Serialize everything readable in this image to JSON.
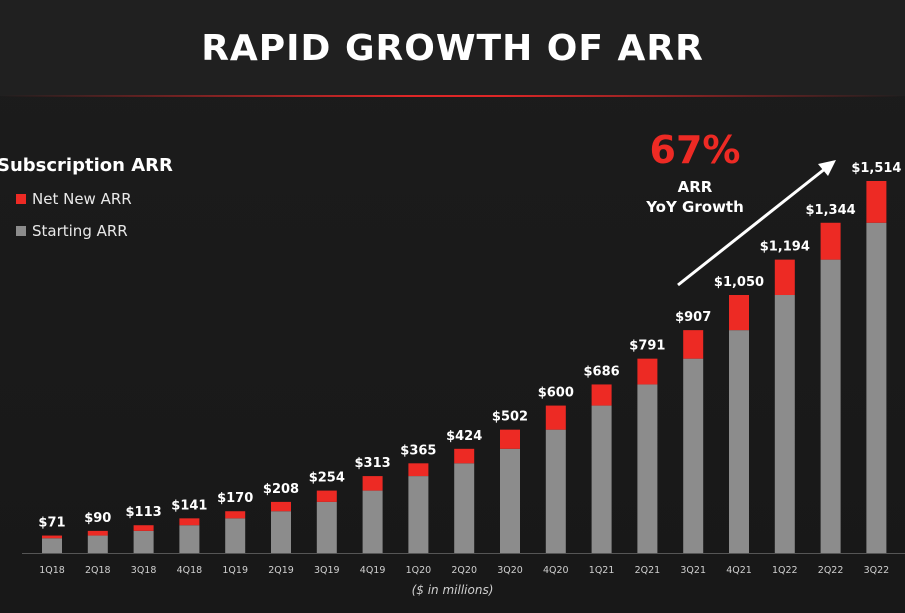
{
  "title": "RAPID GROWTH OF ARR",
  "legend": {
    "title": "Subscription ARR",
    "items": [
      {
        "label": "Net New ARR",
        "color": "#ed2a24"
      },
      {
        "label": "Starting ARR",
        "color": "#8c8c8c"
      }
    ]
  },
  "callout": {
    "value": "67%",
    "line1": "ARR",
    "line2": "YoY Growth"
  },
  "unit_note": "($ in millions)",
  "chart_data": {
    "type": "bar",
    "stacked": true,
    "categories": [
      "1Q18",
      "2Q18",
      "3Q18",
      "4Q18",
      "1Q19",
      "2Q19",
      "3Q19",
      "4Q19",
      "1Q20",
      "2Q20",
      "3Q20",
      "4Q20",
      "1Q21",
      "2Q21",
      "3Q21",
      "4Q21",
      "1Q22",
      "2Q22",
      "3Q22"
    ],
    "totals": [
      71,
      90,
      113,
      141,
      170,
      208,
      254,
      313,
      365,
      424,
      502,
      600,
      686,
      791,
      907,
      1050,
      1194,
      1344,
      1514
    ],
    "total_labels": [
      "$71",
      "$90",
      "$113",
      "$141",
      "$170",
      "$208",
      "$254",
      "$313",
      "$365",
      "$424",
      "$502",
      "$600",
      "$686",
      "$791",
      "$907",
      "$1,050",
      "$1,194",
      "$1,344",
      "$1,514"
    ],
    "series": [
      {
        "name": "Starting ARR",
        "color": "#8c8c8c",
        "values": [
          60,
          71,
          90,
          113,
          141,
          170,
          208,
          254,
          313,
          365,
          424,
          502,
          600,
          686,
          791,
          907,
          1050,
          1194,
          1344
        ]
      },
      {
        "name": "Net New ARR",
        "color": "#ed2a24",
        "values": [
          11,
          19,
          23,
          28,
          29,
          38,
          46,
          59,
          52,
          59,
          78,
          98,
          86,
          105,
          116,
          143,
          144,
          150,
          170
        ]
      }
    ],
    "ylim": [
      0,
      1514
    ],
    "trend_arrow": true
  }
}
